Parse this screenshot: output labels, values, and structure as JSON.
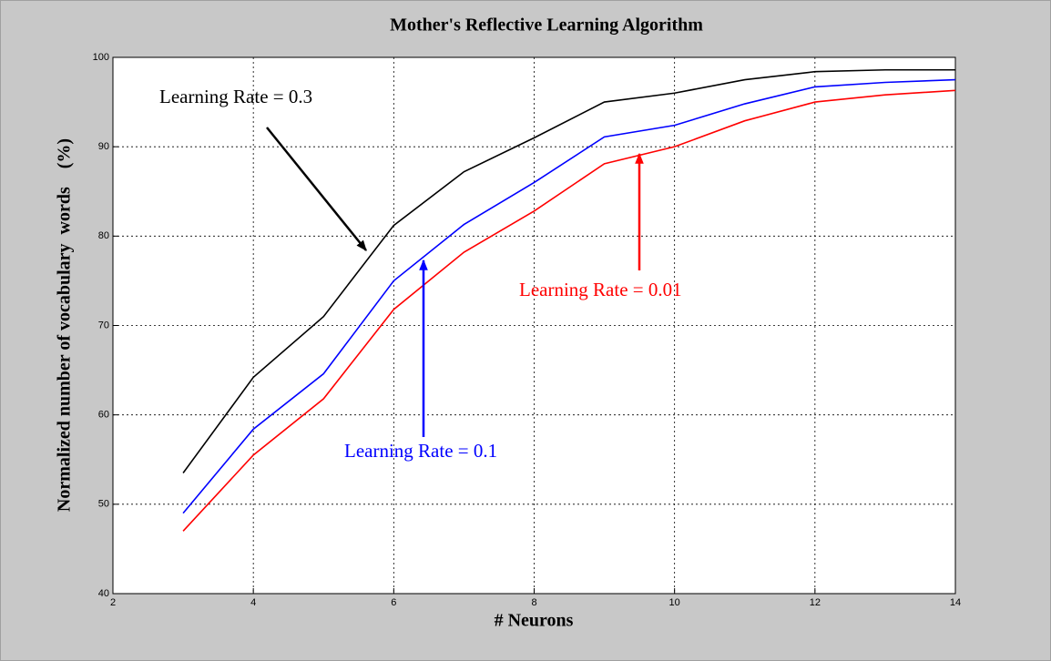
{
  "chart_data": {
    "type": "line",
    "title": "Mother's Reflective Learning Algorithm",
    "x_label": "# Neurons",
    "y_label": "Normalized number of vocabulary  words    (%)",
    "x": [
      3,
      4,
      5,
      6,
      7,
      8,
      9,
      10,
      11,
      12,
      13,
      14
    ],
    "series": [
      {
        "color": "#000000",
        "values": [
          53.5,
          64.2,
          71,
          81.2,
          87.2,
          91,
          95,
          96,
          97.5,
          98.4,
          98.6,
          98.6
        ]
      },
      {
        "color": "#0000ff",
        "values": [
          49,
          58.4,
          64.6,
          75,
          81.3,
          86,
          91.1,
          92.4,
          94.8,
          96.7,
          97.2,
          97.5
        ]
      },
      {
        "color": "#ff0000",
        "values": [
          47,
          55.5,
          61.8,
          71.8,
          78.2,
          82.8,
          88.1,
          90,
          92.9,
          95,
          95.8,
          96.3
        ]
      }
    ],
    "annotations": [
      {
        "text": "Learning Rate = 0.3",
        "color": "#000000"
      },
      {
        "text": "Learning Rate = 0.1",
        "color": "#0000ff"
      },
      {
        "text": "Learning Rate = 0.01",
        "color": "#ff0000"
      }
    ],
    "xlim": [
      2,
      14
    ],
    "ylim": [
      40,
      100
    ],
    "xticks": [
      2,
      4,
      6,
      8,
      10,
      12,
      14
    ],
    "yticks": [
      40,
      50,
      60,
      70,
      80,
      90,
      100
    ],
    "grid": true
  }
}
